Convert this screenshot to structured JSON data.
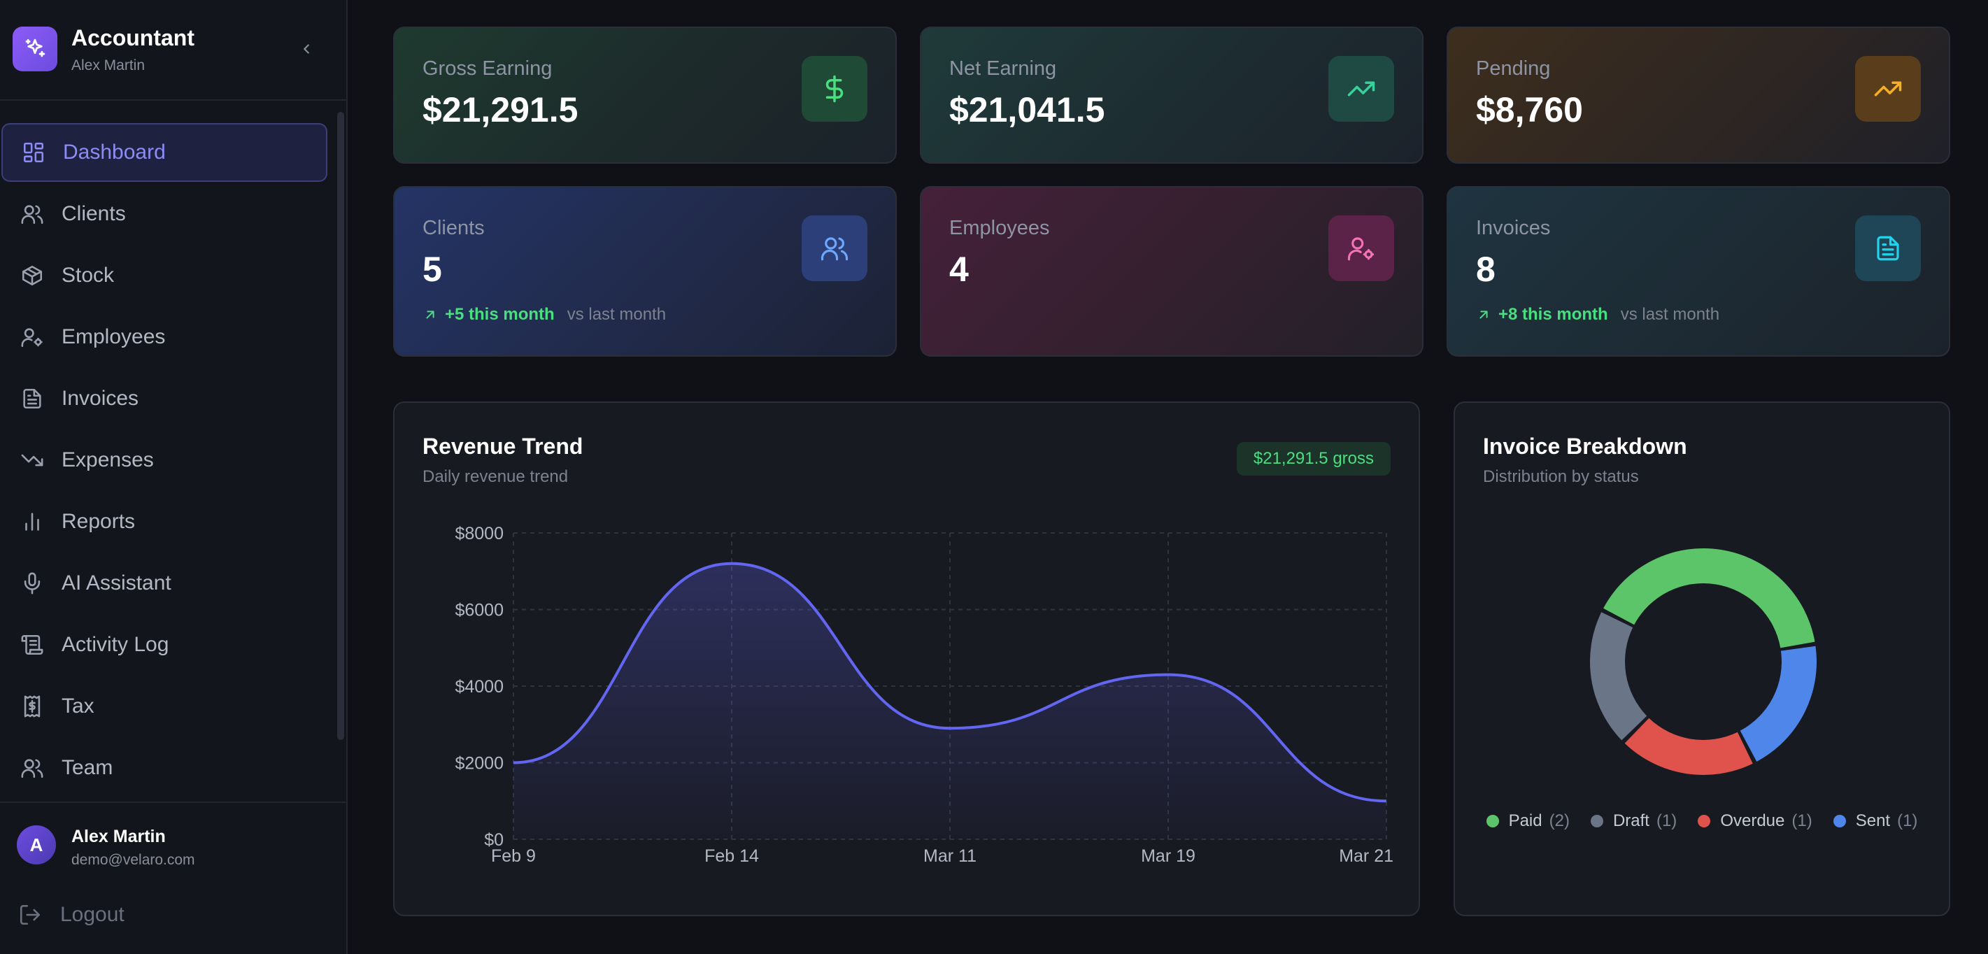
{
  "sidebar": {
    "app_title": "Accountant",
    "app_subtitle": "Alex Martin",
    "nav": [
      {
        "label": "Dashboard",
        "icon": "dashboard-icon",
        "active": true
      },
      {
        "label": "Clients",
        "icon": "users-icon",
        "active": false
      },
      {
        "label": "Stock",
        "icon": "box-icon",
        "active": false
      },
      {
        "label": "Employees",
        "icon": "user-cog-icon",
        "active": false
      },
      {
        "label": "Invoices",
        "icon": "file-text-icon",
        "active": false
      },
      {
        "label": "Expenses",
        "icon": "trending-down-icon",
        "active": false
      },
      {
        "label": "Reports",
        "icon": "bar-chart-icon",
        "active": false
      },
      {
        "label": "AI Assistant",
        "icon": "mic-icon",
        "active": false
      },
      {
        "label": "Activity Log",
        "icon": "scroll-icon",
        "active": false
      },
      {
        "label": "Tax",
        "icon": "receipt-icon",
        "active": false
      },
      {
        "label": "Team",
        "icon": "users-icon",
        "active": false
      }
    ],
    "user": {
      "initial": "A",
      "name": "Alex Martin",
      "email": "demo@velaro.com"
    },
    "logout_label": "Logout"
  },
  "stats": [
    {
      "title": "Gross Earning",
      "value": "$21,291.5",
      "icon": "dollar-icon",
      "accent": "#4ade80"
    },
    {
      "title": "Net Earning",
      "value": "$21,041.5",
      "icon": "trending-up-icon",
      "accent": "#34d399"
    },
    {
      "title": "Pending",
      "value": "$8,760",
      "icon": "trending-up-icon",
      "accent": "#f5b025"
    },
    {
      "title": "Clients",
      "value": "5",
      "icon": "users-icon",
      "accent": "#6ea8fe",
      "trend": "+5 this month",
      "trend_suffix": "vs last month"
    },
    {
      "title": "Employees",
      "value": "4",
      "icon": "user-cog-icon",
      "accent": "#f472b6"
    },
    {
      "title": "Invoices",
      "value": "8",
      "icon": "file-text-icon",
      "accent": "#22d3ee",
      "trend": "+8 this month",
      "trend_suffix": "vs last month"
    }
  ],
  "revenue": {
    "title": "Revenue Trend",
    "subtitle": "Daily revenue trend",
    "badge": "$21,291.5 gross"
  },
  "breakdown": {
    "title": "Invoice Breakdown",
    "subtitle": "Distribution by status"
  },
  "chart_data": [
    {
      "type": "line",
      "title": "Revenue Trend",
      "subtitle": "Daily revenue trend",
      "x": [
        "Feb 9",
        "Feb 14",
        "Mar 11",
        "Mar 19",
        "Mar 21"
      ],
      "series": [
        {
          "values": [
            2000,
            7200,
            2900,
            4300,
            1000
          ]
        }
      ],
      "ylim": [
        0,
        8000
      ],
      "yticks": [
        "$0",
        "$2000",
        "$4000",
        "$6000",
        "$8000"
      ],
      "ytick_values": [
        0,
        2000,
        4000,
        6000,
        8000
      ],
      "grid": true,
      "line_color": "#6366f1"
    },
    {
      "type": "pie",
      "title": "Invoice Breakdown",
      "subtitle": "Distribution by status",
      "donut": true,
      "slices": [
        {
          "label": "Paid",
          "value": 2,
          "color": "#5cc469"
        },
        {
          "label": "Sent",
          "value": 1,
          "color": "#4f86ea"
        },
        {
          "label": "Overdue",
          "value": 1,
          "color": "#e0524c"
        },
        {
          "label": "Draft",
          "value": 1,
          "color": "#6b7588"
        }
      ],
      "legend_order": [
        {
          "label": "Paid",
          "count": "(2)",
          "color": "#5cc469"
        },
        {
          "label": "Draft",
          "count": "(1)",
          "color": "#6b7588"
        },
        {
          "label": "Overdue",
          "count": "(1)",
          "color": "#e0524c"
        },
        {
          "label": "Sent",
          "count": "(1)",
          "color": "#4f86ea"
        }
      ],
      "legend_position": "bottom"
    }
  ]
}
